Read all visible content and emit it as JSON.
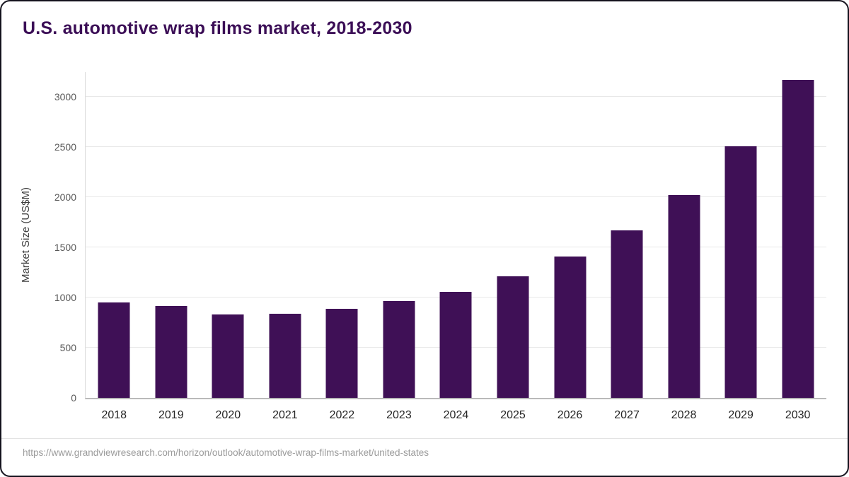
{
  "chart_data": {
    "type": "bar",
    "title": "U.S. automotive wrap films market, 2018-2030",
    "xlabel": "",
    "ylabel": "Market Size (US$M)",
    "categories": [
      "2018",
      "2019",
      "2020",
      "2021",
      "2022",
      "2023",
      "2024",
      "2025",
      "2026",
      "2027",
      "2028",
      "2029",
      "2030"
    ],
    "values": [
      950,
      915,
      835,
      840,
      885,
      965,
      1060,
      1215,
      1410,
      1670,
      2025,
      2510,
      3170
    ],
    "yticks": [
      0,
      500,
      1000,
      1500,
      2000,
      2500,
      3000
    ],
    "ylim": [
      0,
      3250
    ],
    "grid": "horizontal",
    "legend": "none",
    "bar_color": "#3f1056",
    "title_color": "#3b0e56"
  },
  "source": {
    "url": "https://www.grandviewresearch.com/horizon/outlook/automotive-wrap-films-market/united-states"
  }
}
